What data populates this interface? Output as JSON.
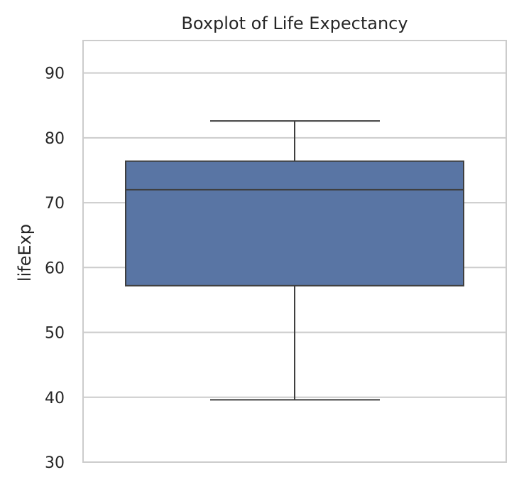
{
  "chart_data": {
    "type": "boxplot",
    "title": "Boxplot of Life Expectancy",
    "xlabel": "",
    "ylabel": "lifeExp",
    "ylim": [
      30,
      95
    ],
    "yticks": [
      30,
      40,
      50,
      60,
      70,
      80,
      90
    ],
    "grid": true,
    "stats": {
      "whisker_low": 39.6,
      "q1": 57.2,
      "median": 72.0,
      "q3": 76.4,
      "whisker_high": 82.6
    },
    "box_color": "#5975a4",
    "line_color": "#3f3f3f",
    "grid_color": "#cccccc",
    "frame_color": "#cccccc"
  }
}
